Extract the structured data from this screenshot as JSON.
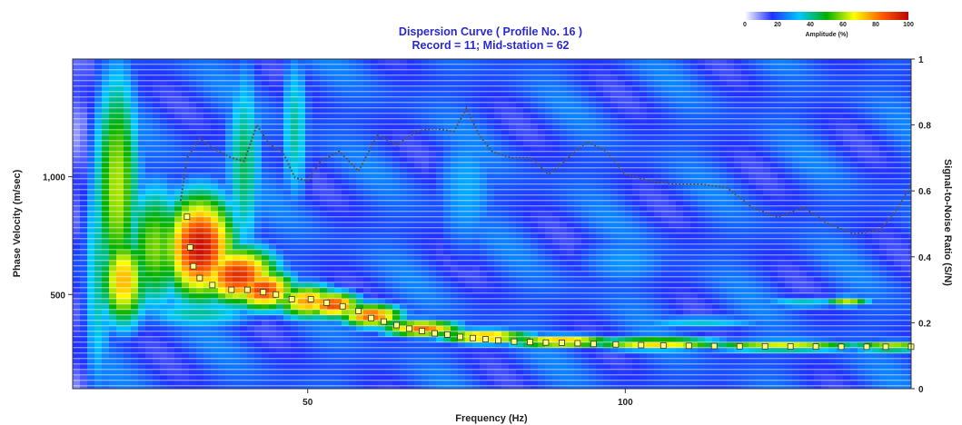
{
  "chart_data": {
    "type": "heatmap",
    "title": "Dispersion Curve ( Profile No. 16 )",
    "subtitle": "Record = 11; Mid-station = 62",
    "xlabel": "Frequency (Hz)",
    "ylabel": "Phase Velocity (m/sec)",
    "y2label": "Signal-to-Noise Ratio (S/N)",
    "xlim": [
      13,
      145
    ],
    "ylim": [
      100,
      1500
    ],
    "y2lim": [
      0,
      1
    ],
    "x_ticks": [
      50,
      100
    ],
    "y_ticks": [
      500,
      1000
    ],
    "y_tick_labels": [
      "500",
      "1,000"
    ],
    "y2_ticks": [
      0,
      0.2,
      0.4,
      0.6,
      0.8,
      1
    ],
    "y2_tick_labels": [
      "0",
      "0.2",
      "0.4",
      "0.6",
      "0.8",
      "1"
    ],
    "colorbar": {
      "label": "Amplitude (%)",
      "ticks": [
        0,
        20,
        40,
        60,
        80,
        100
      ],
      "colors": [
        "#ffffff",
        "#2030ff",
        "#00c8ff",
        "#00b000",
        "#ffff00",
        "#ff6000",
        "#c00000"
      ]
    },
    "series": [
      {
        "kind": "dispersion-points",
        "color": "#ffff80",
        "x": [
          31,
          31.5,
          32,
          33,
          35,
          38,
          40.5,
          43,
          45,
          47.5,
          50.5,
          53,
          55.5,
          58,
          60,
          62,
          64,
          66,
          68,
          70,
          72,
          74,
          76,
          78,
          80,
          82.5,
          85,
          87.5,
          90,
          92.5,
          95,
          98.5,
          102.5,
          106,
          110,
          114,
          118,
          122,
          126,
          130,
          134,
          138,
          141,
          145
        ],
        "y": [
          830,
          700,
          620,
          570,
          540,
          520,
          520,
          510,
          500,
          480,
          480,
          465,
          450,
          430,
          400,
          385,
          370,
          355,
          345,
          335,
          330,
          320,
          315,
          310,
          305,
          300,
          298,
          296,
          295,
          293,
          290,
          288,
          285,
          283,
          282,
          281,
          280,
          280,
          279,
          279,
          278,
          278,
          278,
          278
        ]
      },
      {
        "kind": "signal-to-noise",
        "axis": "y2",
        "color": "#555555",
        "x": [
          30,
          31,
          33,
          35,
          38,
          40,
          42,
          44,
          46,
          48,
          50,
          52,
          55,
          58,
          61,
          64,
          67,
          70,
          73,
          75,
          77,
          79,
          82,
          85,
          88,
          91,
          94,
          97,
          100,
          104,
          108,
          112,
          116,
          120,
          124,
          128,
          132,
          136,
          140,
          143,
          145
        ],
        "y": [
          0.57,
          0.7,
          0.76,
          0.73,
          0.7,
          0.69,
          0.8,
          0.74,
          0.72,
          0.64,
          0.63,
          0.69,
          0.72,
          0.66,
          0.77,
          0.74,
          0.78,
          0.79,
          0.78,
          0.85,
          0.77,
          0.72,
          0.7,
          0.7,
          0.65,
          0.7,
          0.75,
          0.72,
          0.65,
          0.63,
          0.62,
          0.62,
          0.61,
          0.55,
          0.52,
          0.55,
          0.5,
          0.47,
          0.48,
          0.55,
          0.62
        ]
      }
    ],
    "energy_features": [
      {
        "f": 33,
        "v": 700,
        "a": 98,
        "sf": 4.5,
        "sv": 180
      },
      {
        "f": 39,
        "v": 580,
        "a": 92,
        "sf": 5,
        "sv": 100
      },
      {
        "f": 43,
        "v": 520,
        "a": 90,
        "sf": 4,
        "sv": 70
      },
      {
        "f": 50,
        "v": 470,
        "a": 78,
        "sf": 4,
        "sv": 60
      },
      {
        "f": 54,
        "v": 455,
        "a": 88,
        "sf": 3.5,
        "sv": 45
      },
      {
        "f": 60,
        "v": 410,
        "a": 85,
        "sf": 4,
        "sv": 40
      },
      {
        "f": 68,
        "v": 355,
        "a": 82,
        "sf": 5,
        "sv": 30
      },
      {
        "f": 78,
        "v": 320,
        "a": 78,
        "sf": 6,
        "sv": 25
      },
      {
        "f": 90,
        "v": 300,
        "a": 76,
        "sf": 7,
        "sv": 22
      },
      {
        "f": 105,
        "v": 290,
        "a": 72,
        "sf": 9,
        "sv": 22
      },
      {
        "f": 125,
        "v": 282,
        "a": 65,
        "sf": 11,
        "sv": 20
      },
      {
        "f": 142,
        "v": 280,
        "a": 62,
        "sf": 6,
        "sv": 20
      },
      {
        "f": 20,
        "v": 950,
        "a": 62,
        "sf": 3,
        "sv": 420
      },
      {
        "f": 21,
        "v": 560,
        "a": 75,
        "sf": 3,
        "sv": 160
      },
      {
        "f": 26,
        "v": 700,
        "a": 58,
        "sf": 4,
        "sv": 230
      },
      {
        "f": 17,
        "v": 600,
        "a": 40,
        "sf": 2,
        "sv": 500
      },
      {
        "f": 40,
        "v": 1050,
        "a": 44,
        "sf": 2.5,
        "sv": 380
      },
      {
        "f": 48,
        "v": 1200,
        "a": 40,
        "sf": 2,
        "sv": 300
      },
      {
        "f": 33,
        "v": 420,
        "a": 40,
        "sf": 8,
        "sv": 60
      },
      {
        "f": 135,
        "v": 470,
        "a": 62,
        "sf": 3,
        "sv": 18
      },
      {
        "f": 128,
        "v": 465,
        "a": 38,
        "sf": 6,
        "sv": 22
      },
      {
        "f": 112,
        "v": 380,
        "a": 36,
        "sf": 10,
        "sv": 25
      },
      {
        "f": 75,
        "v": 950,
        "a": 30,
        "sf": 5,
        "sv": 300
      },
      {
        "f": 100,
        "v": 640,
        "a": 28,
        "sf": 8,
        "sv": 120
      }
    ]
  }
}
